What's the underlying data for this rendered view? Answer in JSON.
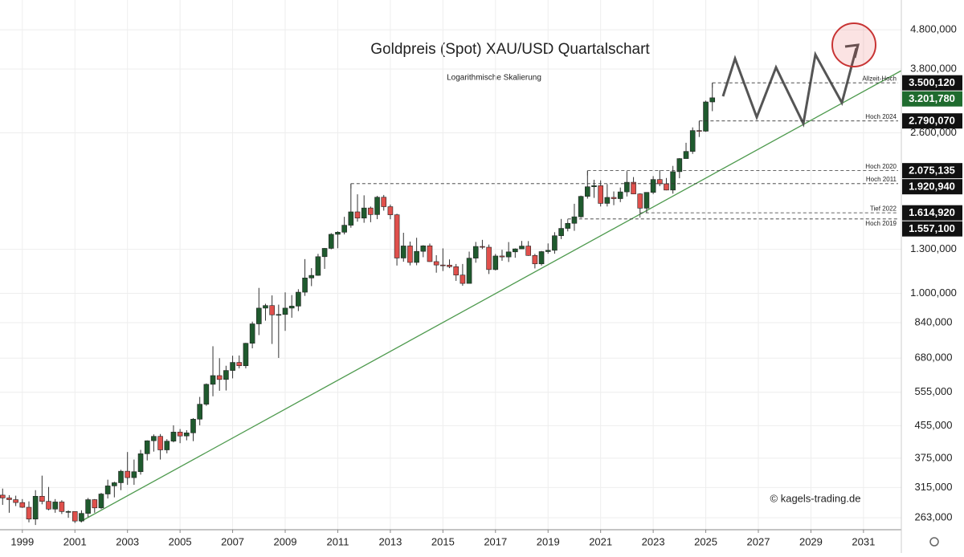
{
  "chart_data": {
    "type": "candlestick",
    "title": "Goldpreis (Spot) XAU/USD Quartalschart",
    "subtitle": "Logarithmische Skalierung",
    "watermark": "© kagels-trading.de",
    "log_scale": true,
    "grid": true,
    "up_color": "#1f5a2e",
    "down_color": "#e0504c",
    "xlim": [
      1998.15,
      2032.44
    ],
    "xticks": [
      1999,
      2001,
      2003,
      2005,
      2007,
      2009,
      2011,
      2013,
      2015,
      2017,
      2019,
      2021,
      2023,
      2025,
      2027,
      2029,
      2031
    ],
    "ylim": [
      245,
      5730
    ],
    "yticks": [
      {
        "value": 4800,
        "label": "4.800,000"
      },
      {
        "value": 3800,
        "label": "3.800,000"
      },
      {
        "value": 2600,
        "label": "2.600,000"
      },
      {
        "value": 1300,
        "label": "1.300,000"
      },
      {
        "value": 1000,
        "label": "1.000,000"
      },
      {
        "value": 840,
        "label": "840,000"
      },
      {
        "value": 680,
        "label": "680,000"
      },
      {
        "value": 555,
        "label": "555,000"
      },
      {
        "value": 455,
        "label": "455,000"
      },
      {
        "value": 375,
        "label": "375,000"
      },
      {
        "value": 315,
        "label": "315,000"
      },
      {
        "value": 263,
        "label": "263,000"
      }
    ],
    "x": [
      1998.25,
      1998.5,
      1998.75,
      1999,
      1999.25,
      1999.5,
      1999.75,
      2000,
      2000.25,
      2000.5,
      2000.75,
      2001,
      2001.25,
      2001.5,
      2001.75,
      2002,
      2002.25,
      2002.5,
      2002.75,
      2003,
      2003.25,
      2003.5,
      2003.75,
      2004,
      2004.25,
      2004.5,
      2004.75,
      2005,
      2005.25,
      2005.5,
      2005.75,
      2006,
      2006.25,
      2006.5,
      2006.75,
      2007,
      2007.25,
      2007.5,
      2007.75,
      2008,
      2008.25,
      2008.5,
      2008.75,
      2009,
      2009.25,
      2009.5,
      2009.75,
      2010,
      2010.25,
      2010.5,
      2010.75,
      2011,
      2011.25,
      2011.5,
      2011.75,
      2012,
      2012.25,
      2012.5,
      2012.75,
      2013,
      2013.25,
      2013.5,
      2013.75,
      2014,
      2014.25,
      2014.5,
      2014.75,
      2015,
      2015.25,
      2015.5,
      2015.75,
      2016,
      2016.25,
      2016.5,
      2016.75,
      2017,
      2017.25,
      2017.5,
      2017.75,
      2018,
      2018.25,
      2018.5,
      2018.75,
      2019,
      2019.25,
      2019.5,
      2019.75,
      2020,
      2020.25,
      2020.5,
      2020.75,
      2021,
      2021.25,
      2021.5,
      2021.75,
      2022,
      2022.25,
      2022.5,
      2022.75,
      2023,
      2023.25,
      2023.5,
      2023.75,
      2024,
      2024.25,
      2024.5,
      2024.75,
      2025,
      2025.25
    ],
    "open": [
      301,
      296,
      293,
      288,
      280,
      261,
      299,
      290,
      277,
      289,
      273,
      273,
      258,
      270,
      293,
      279,
      303,
      318,
      324,
      347,
      334,
      346,
      385,
      416,
      427,
      394,
      415,
      438,
      428,
      436,
      473,
      517,
      582,
      613,
      599,
      632,
      663,
      650,
      743,
      834,
      916,
      930,
      880,
      882,
      916,
      927,
      1007,
      1096,
      1113,
      1244,
      1307,
      1421,
      1439,
      1500,
      1624,
      1565,
      1662,
      1598,
      1772,
      1675,
      1596,
      1234,
      1326,
      1202,
      1284,
      1327,
      1208,
      1184,
      1183,
      1172,
      1115,
      1061,
      1233,
      1322,
      1316,
      1152,
      1249,
      1242,
      1280,
      1303,
      1325,
      1253,
      1192,
      1282,
      1292,
      1409,
      1472,
      1517,
      1577,
      1781,
      1886,
      1898,
      1708,
      1770,
      1757,
      1829,
      1937,
      1807,
      1660,
      1824,
      1969,
      1919,
      1849,
      2063,
      2230,
      2327,
      2635,
      2625,
      3124
    ],
    "high": [
      313,
      301,
      300,
      294,
      290,
      310,
      338,
      316,
      294,
      292,
      275,
      273,
      275,
      296,
      294,
      305,
      330,
      326,
      350,
      389,
      372,
      394,
      417,
      432,
      433,
      420,
      456,
      446,
      443,
      476,
      540,
      585,
      730,
      680,
      650,
      690,
      691,
      745,
      845,
      1033,
      940,
      988,
      935,
      1006,
      990,
      1025,
      1226,
      1162,
      1265,
      1310,
      1431,
      1447,
      1577,
      1920.94,
      1803,
      1792,
      1676,
      1786,
      1796,
      1696,
      1606,
      1434,
      1361,
      1392,
      1332,
      1345,
      1255,
      1307,
      1224,
      1191,
      1191,
      1282,
      1358,
      1375,
      1337,
      1264,
      1296,
      1357,
      1307,
      1366,
      1365,
      1265,
      1287,
      1346,
      1439,
      1557.1,
      1523,
      1704,
      1789,
      2075.135,
      1966,
      1959,
      1916,
      1834,
      1877,
      2070,
      1998,
      1814,
      1825,
      2009,
      2082,
      1987,
      2135,
      2236,
      2450,
      2685,
      2790.07,
      3148,
      3500.12
    ],
    "low": [
      284,
      271,
      282,
      279,
      256,
      252,
      285,
      275,
      271,
      269,
      263,
      255,
      256,
      264,
      271,
      277,
      295,
      297,
      310,
      320,
      320,
      340,
      370,
      390,
      372,
      386,
      412,
      410,
      417,
      415,
      456,
      512,
      542,
      560,
      561,
      603,
      640,
      640,
      721,
      780,
      850,
      740,
      681,
      800,
      865,
      900,
      985,
      1044,
      1110,
      1157,
      1300,
      1308,
      1420,
      1478,
      1532,
      1522,
      1527,
      1555,
      1636,
      1554,
      1180,
      1207,
      1181,
      1182,
      1240,
      1206,
      1131,
      1142,
      1162,
      1077,
      1046,
      1061,
      1200,
      1302,
      1122,
      1146,
      1214,
      1205,
      1236,
      1303,
      1250,
      1160,
      1180,
      1266,
      1266,
      1381,
      1446,
      1451,
      1567,
      1757,
      1765,
      1677,
      1677,
      1690,
      1721,
      1780,
      1805,
      1614.92,
      1617,
      1805,
      1893,
      1846,
      1810,
      1984,
      2228,
      2293,
      2536,
      2614,
      2957
    ],
    "close": [
      296,
      293,
      288,
      280,
      261,
      299,
      290,
      277,
      289,
      273,
      273,
      258,
      270,
      293,
      279,
      303,
      318,
      324,
      347,
      334,
      346,
      385,
      416,
      427,
      394,
      415,
      438,
      428,
      436,
      473,
      517,
      582,
      613,
      599,
      632,
      663,
      650,
      743,
      834,
      916,
      930,
      880,
      882,
      916,
      927,
      1007,
      1096,
      1113,
      1244,
      1307,
      1421,
      1439,
      1500,
      1624,
      1565,
      1662,
      1598,
      1772,
      1675,
      1596,
      1234,
      1326,
      1202,
      1284,
      1327,
      1208,
      1184,
      1183,
      1172,
      1115,
      1061,
      1233,
      1322,
      1316,
      1152,
      1249,
      1242,
      1280,
      1303,
      1325,
      1253,
      1192,
      1282,
      1292,
      1409,
      1472,
      1517,
      1577,
      1781,
      1886,
      1898,
      1708,
      1770,
      1757,
      1829,
      1937,
      1807,
      1660,
      1824,
      1969,
      1919,
      1849,
      2063,
      2230,
      2327,
      2635,
      2625,
      3124,
      3201.78
    ],
    "levels": [
      {
        "label": "Allzeit-Hoch",
        "value": 3500.12,
        "value_label": "3.500,120",
        "x": 2025.25
      },
      {
        "label": "Hoch 2024",
        "value": 2790.07,
        "value_label": "2.790,070",
        "x": 2024.75
      },
      {
        "label": "Hoch 2020",
        "value": 2075.135,
        "value_label": "2.075,135",
        "x": 2020.5
      },
      {
        "label": "Hoch 2011",
        "value": 1920.94,
        "value_label": "1.920,940",
        "x": 2011.5
      },
      {
        "label": "Tief 2022",
        "value": 1614.92,
        "value_label": "1.614,920",
        "x": 2022.5
      },
      {
        "label": "Hoch 2019",
        "value": 1557.1,
        "value_label": "1.557,100",
        "x": 2019.75
      }
    ],
    "last_price": {
      "value": 3201.78,
      "label": "3.201,780",
      "color": "#1f6b2e"
    }
  }
}
